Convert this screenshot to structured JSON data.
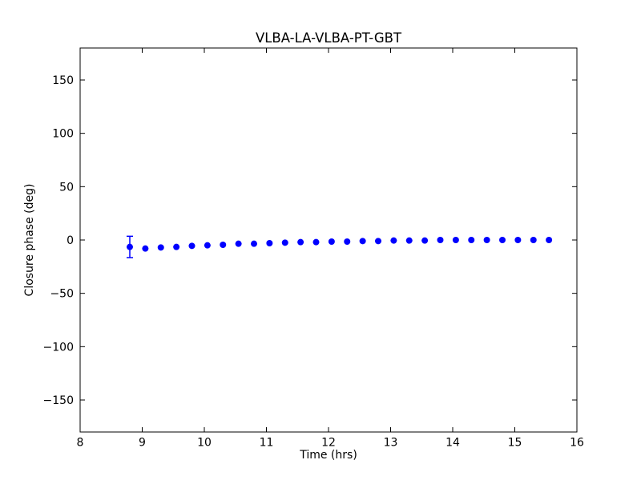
{
  "figure": {
    "background_color": "#ffffff",
    "frame_color": "#000000",
    "text_color": "#000000"
  },
  "chart_data": {
    "type": "scatter",
    "title": "VLBA-LA-VLBA-PT-GBT",
    "xlabel": "Time (hrs)",
    "ylabel": "Closure phase (deg)",
    "xlim": [
      8,
      16
    ],
    "ylim": [
      -180,
      180
    ],
    "xticks": [
      8,
      9,
      10,
      11,
      12,
      13,
      14,
      15,
      16
    ],
    "yticks": [
      -150,
      -100,
      -50,
      0,
      50,
      100,
      150
    ],
    "grid": false,
    "legend": "none",
    "marker": {
      "shape": "circle",
      "color": "#0000ff",
      "radius": 4
    },
    "error_bars": {
      "color": "#0000ff",
      "cap_half_width": 4,
      "visible_only_on_first_point": true,
      "first_point_yerr_deg": 10
    },
    "series": [
      {
        "name": "closure-phase",
        "x": [
          8.8,
          9.05,
          9.3,
          9.55,
          9.8,
          10.05,
          10.3,
          10.55,
          10.8,
          11.05,
          11.3,
          11.55,
          11.8,
          12.05,
          12.3,
          12.55,
          12.8,
          13.05,
          13.3,
          13.55,
          13.8,
          14.05,
          14.3,
          14.55,
          14.8,
          15.05,
          15.3,
          15.55
        ],
        "y": [
          -6.5,
          -8,
          -7,
          -6.5,
          -5.5,
          -5,
          -4.5,
          -3.5,
          -3.5,
          -3,
          -2.5,
          -2,
          -2,
          -1.5,
          -1.5,
          -1,
          -1,
          -0.5,
          -0.5,
          -0.5,
          0,
          0,
          0,
          0,
          0,
          0,
          0,
          0
        ],
        "yerr": [
          10,
          0,
          0,
          0,
          0,
          0,
          0,
          0,
          0,
          0,
          0,
          0,
          0,
          0,
          0,
          0,
          0,
          0,
          0,
          0,
          0,
          0,
          0,
          0,
          0,
          0,
          0,
          0
        ]
      }
    ]
  }
}
